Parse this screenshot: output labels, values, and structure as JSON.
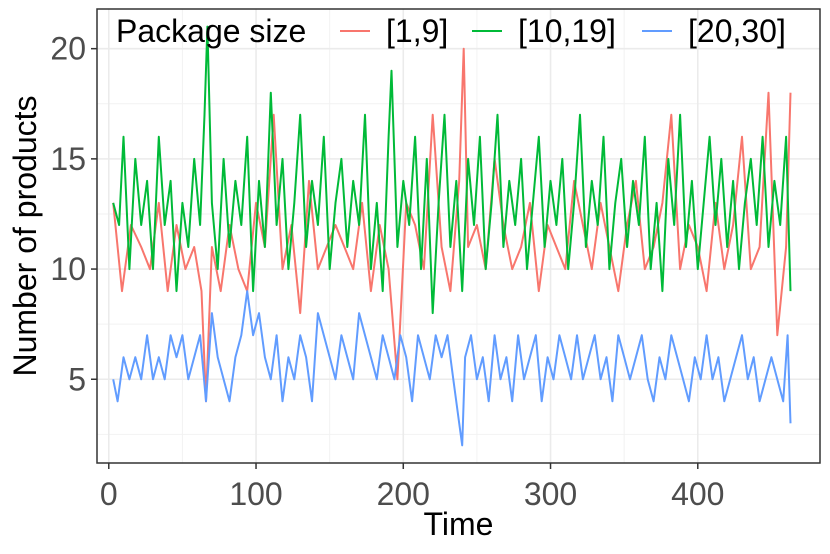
{
  "chart_data": {
    "type": "line",
    "title": "",
    "xlabel": "Time",
    "ylabel": "Number of products",
    "xlim": [
      -8,
      483
    ],
    "ylim": [
      1.2,
      21.8
    ],
    "x_ticks": [
      0,
      100,
      200,
      300,
      400
    ],
    "y_ticks": [
      5,
      10,
      15,
      20
    ],
    "x_tick_labels": [
      "0",
      "100",
      "200",
      "300",
      "400"
    ],
    "y_tick_labels": [
      "5",
      "10",
      "15",
      "20"
    ],
    "grid": true,
    "legend": {
      "title": "Package size",
      "position": "top"
    },
    "series": [
      {
        "name": "[1,9]",
        "color": "#F8766D",
        "x": [
          3,
          9,
          15,
          22,
          28,
          34,
          40,
          46,
          52,
          58,
          63,
          66,
          70,
          76,
          82,
          88,
          94,
          100,
          106,
          112,
          118,
          124,
          130,
          136,
          142,
          148,
          154,
          160,
          166,
          172,
          178,
          184,
          190,
          196,
          202,
          208,
          214,
          220,
          226,
          232,
          238,
          241,
          244,
          250,
          256,
          262,
          268,
          274,
          280,
          286,
          292,
          298,
          304,
          310,
          316,
          322,
          328,
          334,
          340,
          346,
          352,
          358,
          364,
          370,
          376,
          382,
          388,
          394,
          400,
          406,
          412,
          418,
          424,
          430,
          436,
          442,
          448,
          454,
          460,
          463
        ],
        "values": [
          13,
          9,
          12,
          11,
          10,
          13,
          9,
          12,
          10,
          11,
          9,
          4,
          11,
          9,
          12,
          10,
          9,
          13,
          11,
          17,
          10,
          12,
          8,
          14,
          10,
          11,
          12,
          11,
          10,
          13,
          9,
          12,
          10,
          5,
          13,
          12,
          10,
          17,
          11,
          9,
          14,
          20,
          11,
          12,
          10,
          15,
          12,
          10,
          11,
          13,
          9,
          12,
          11,
          10,
          14,
          12,
          10,
          13,
          11,
          9,
          12,
          14,
          10,
          11,
          13,
          17,
          10,
          12,
          11,
          9,
          13,
          10,
          12,
          16,
          10,
          11,
          18,
          7,
          11,
          18
        ]
      },
      {
        "name": "[10,19]",
        "color": "#00BA38",
        "x": [
          3,
          7,
          10,
          14,
          18,
          22,
          26,
          30,
          34,
          38,
          42,
          46,
          50,
          54,
          58,
          62,
          65,
          67,
          70,
          74,
          78,
          82,
          86,
          90,
          94,
          98,
          102,
          106,
          110,
          114,
          118,
          122,
          126,
          130,
          134,
          138,
          142,
          146,
          150,
          154,
          158,
          162,
          166,
          170,
          174,
          178,
          182,
          186,
          190,
          192,
          196,
          200,
          204,
          208,
          212,
          216,
          220,
          224,
          228,
          232,
          236,
          240,
          244,
          248,
          252,
          256,
          260,
          264,
          268,
          272,
          276,
          280,
          284,
          288,
          292,
          296,
          300,
          304,
          308,
          312,
          316,
          320,
          324,
          328,
          332,
          336,
          340,
          344,
          348,
          352,
          356,
          360,
          364,
          368,
          372,
          376,
          380,
          384,
          388,
          392,
          396,
          400,
          404,
          408,
          412,
          416,
          420,
          424,
          428,
          432,
          436,
          440,
          444,
          448,
          452,
          456,
          460,
          463
        ],
        "values": [
          13,
          12,
          16,
          10,
          15,
          12,
          14,
          10,
          16,
          12,
          14,
          9,
          13,
          11,
          15,
          12,
          17,
          21,
          13,
          10,
          15,
          11,
          14,
          12,
          16,
          9,
          14,
          11,
          18,
          12,
          15,
          10,
          13,
          17,
          11,
          14,
          12,
          16,
          10,
          13,
          15,
          11,
          14,
          12,
          17,
          10,
          13,
          9,
          16,
          19,
          11,
          14,
          12,
          16,
          10,
          15,
          8,
          13,
          17,
          11,
          14,
          9,
          15,
          12,
          16,
          10,
          13,
          17,
          11,
          14,
          12,
          15,
          10,
          13,
          16,
          11,
          14,
          12,
          15,
          10,
          13,
          17,
          11,
          14,
          12,
          16,
          10,
          13,
          15,
          11,
          14,
          12,
          16,
          10,
          13,
          9,
          15,
          12,
          17,
          11,
          14,
          10,
          13,
          16,
          12,
          15,
          11,
          14,
          10,
          13,
          15,
          12,
          16,
          11,
          14,
          12,
          16,
          9
        ]
      },
      {
        "name": "[20,30]",
        "color": "#619CFF",
        "x": [
          3,
          6,
          10,
          14,
          18,
          22,
          26,
          30,
          34,
          38,
          42,
          46,
          50,
          54,
          58,
          62,
          66,
          70,
          74,
          78,
          82,
          86,
          90,
          94,
          98,
          102,
          106,
          110,
          114,
          118,
          122,
          126,
          130,
          134,
          138,
          142,
          146,
          150,
          154,
          158,
          162,
          166,
          170,
          174,
          178,
          182,
          186,
          190,
          194,
          198,
          202,
          206,
          210,
          214,
          218,
          222,
          226,
          230,
          234,
          238,
          240,
          242,
          246,
          250,
          254,
          258,
          262,
          266,
          270,
          274,
          278,
          282,
          286,
          290,
          294,
          298,
          302,
          306,
          310,
          314,
          318,
          322,
          326,
          330,
          334,
          338,
          342,
          346,
          350,
          354,
          358,
          362,
          366,
          370,
          374,
          378,
          382,
          386,
          390,
          394,
          398,
          402,
          406,
          410,
          414,
          418,
          422,
          426,
          430,
          434,
          438,
          442,
          446,
          450,
          454,
          458,
          461,
          463
        ],
        "values": [
          5,
          4,
          6,
          5,
          6,
          5,
          7,
          5,
          6,
          5,
          7,
          6,
          7,
          5,
          6,
          7,
          4,
          8,
          6,
          5,
          4,
          6,
          7,
          9,
          7,
          8,
          6,
          5,
          7,
          4,
          6,
          5,
          7,
          6,
          4,
          8,
          7,
          6,
          5,
          7,
          6,
          5,
          8,
          7,
          6,
          5,
          7,
          6,
          5,
          7,
          6,
          4,
          7,
          6,
          5,
          7,
          6,
          7,
          5,
          3,
          2,
          6,
          7,
          5,
          6,
          4,
          7,
          5,
          6,
          4,
          7,
          5,
          6,
          7,
          4,
          6,
          5,
          7,
          6,
          5,
          7,
          5,
          6,
          7,
          5,
          6,
          4,
          7,
          6,
          5,
          6,
          7,
          5,
          4,
          6,
          5,
          7,
          6,
          5,
          4,
          6,
          5,
          7,
          5,
          6,
          4,
          5,
          6,
          7,
          5,
          6,
          4,
          5,
          6,
          5,
          4,
          7,
          3
        ]
      }
    ]
  }
}
